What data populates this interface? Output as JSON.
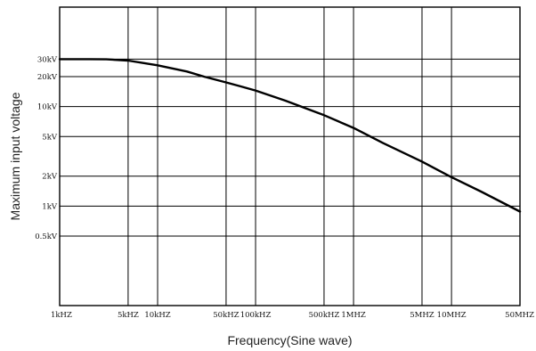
{
  "chart_data": {
    "type": "line",
    "title": "",
    "xlabel": "Frequency(Sine wave)",
    "ylabel": "Maximum input voltage",
    "x_scale": "log",
    "y_scale": "log",
    "xlim": [
      1000,
      50000000
    ],
    "ylim": [
      100,
      100000
    ],
    "grid": true,
    "x_ticks": [
      {
        "value": 1000,
        "label": "1kHZ"
      },
      {
        "value": 5000,
        "label": "5kHZ"
      },
      {
        "value": 10000,
        "label": "10kHZ"
      },
      {
        "value": 50000,
        "label": "50kHZ"
      },
      {
        "value": 100000,
        "label": "100kHZ"
      },
      {
        "value": 500000,
        "label": "500kHZ"
      },
      {
        "value": 1000000,
        "label": "1MHZ"
      },
      {
        "value": 5000000,
        "label": "5MHZ"
      },
      {
        "value": 10000000,
        "label": "10MHZ"
      },
      {
        "value": 50000000,
        "label": "50MHZ"
      }
    ],
    "y_ticks": [
      {
        "value": 500,
        "label": "0.5kV"
      },
      {
        "value": 1000,
        "label": "1kV"
      },
      {
        "value": 2000,
        "label": "2kV"
      },
      {
        "value": 5000,
        "label": "5kV"
      },
      {
        "value": 10000,
        "label": "10kV"
      },
      {
        "value": 20000,
        "label": "20kV"
      },
      {
        "value": 30000,
        "label": "30kV"
      }
    ],
    "series": [
      {
        "color": "#000000",
        "x": [
          1000,
          2000,
          3000,
          5000,
          7000,
          10000,
          20000,
          30000,
          50000,
          70000,
          100000,
          200000,
          500000,
          1000000,
          2000000,
          5000000,
          10000000,
          20000000,
          50000000
        ],
        "y": [
          30000,
          30000,
          29900,
          29000,
          27500,
          26000,
          22500,
          20000,
          17500,
          16000,
          14500,
          11500,
          8200,
          6100,
          4300,
          2800,
          1950,
          1400,
          880
        ]
      }
    ]
  }
}
